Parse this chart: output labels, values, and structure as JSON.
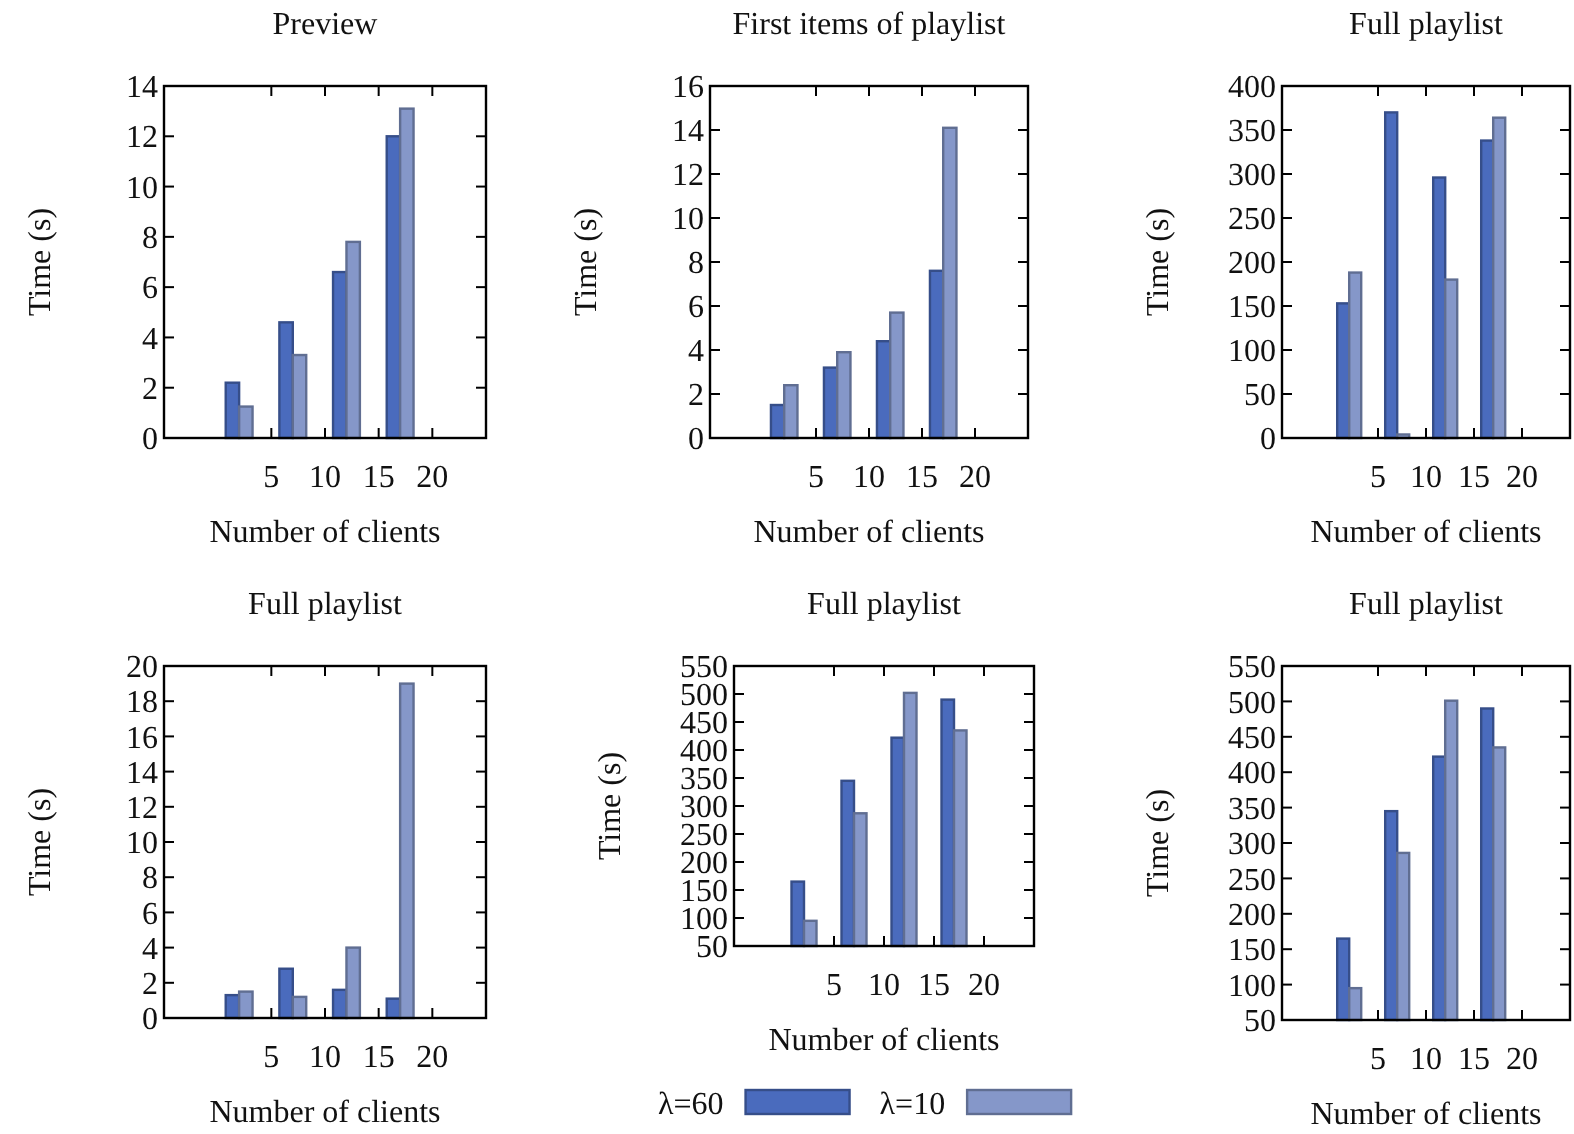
{
  "chart_data": [
    {
      "type": "bar",
      "title": "Preview",
      "xlabel": "Number of clients",
      "ylabel": "Time (s)",
      "xlim": [
        -5,
        25
      ],
      "xticks": [
        5,
        10,
        15,
        20
      ],
      "ylim": [
        0,
        14
      ],
      "yticks": [
        0,
        2,
        4,
        6,
        8,
        10,
        12,
        14
      ],
      "grid": false,
      "legend": false,
      "series": [
        {
          "color": "#4a6bbd",
          "x": [
            2,
            7,
            12,
            17
          ],
          "values": [
            2.2,
            4.6,
            6.6,
            12
          ]
        },
        {
          "color": "#8597c9",
          "x": [
            2,
            7,
            12,
            17
          ],
          "values": [
            1.25,
            3.3,
            7.8,
            13.1
          ]
        }
      ]
    },
    {
      "type": "bar",
      "title": "First items of playlist",
      "xlabel": "Number of clients",
      "ylabel": "Time (s)",
      "xlim": [
        -5,
        25
      ],
      "xticks": [
        5,
        10,
        15,
        20
      ],
      "ylim": [
        0,
        16
      ],
      "yticks": [
        0,
        2,
        4,
        6,
        8,
        10,
        12,
        14,
        16
      ],
      "grid": false,
      "legend": false,
      "series": [
        {
          "color": "#4a6bbd",
          "x": [
            2,
            7,
            12,
            17
          ],
          "values": [
            1.5,
            3.2,
            4.4,
            7.6
          ]
        },
        {
          "color": "#8597c9",
          "x": [
            2,
            7,
            12,
            17
          ],
          "values": [
            2.4,
            3.9,
            5.7,
            14.1
          ]
        }
      ]
    },
    {
      "type": "bar",
      "title": "Full playlist",
      "xlabel": "Number of clients",
      "ylabel": "Time (s)",
      "xlim": [
        -5,
        25
      ],
      "xticks": [
        5,
        10,
        15,
        20
      ],
      "ylim": [
        0,
        400
      ],
      "yticks": [
        0,
        50,
        100,
        150,
        200,
        250,
        300,
        350,
        400
      ],
      "grid": false,
      "legend": false,
      "series": [
        {
          "color": "#4a6bbd",
          "x": [
            2,
            7,
            12,
            17
          ],
          "values": [
            153,
            370,
            296,
            338
          ]
        },
        {
          "color": "#8597c9",
          "x": [
            2,
            7,
            12,
            17
          ],
          "values": [
            188,
            4,
            180,
            364
          ]
        }
      ]
    },
    {
      "type": "bar",
      "title": "Full playlist",
      "xlabel": "Number of clients",
      "ylabel": "Time (s)",
      "xlim": [
        -5,
        25
      ],
      "xticks": [
        5,
        10,
        15,
        20
      ],
      "ylim": [
        0,
        20
      ],
      "yticks": [
        0,
        2,
        4,
        6,
        8,
        10,
        12,
        14,
        16,
        18,
        20
      ],
      "grid": false,
      "legend": false,
      "series": [
        {
          "color": "#4a6bbd",
          "x": [
            2,
            7,
            12,
            17
          ],
          "values": [
            1.3,
            2.8,
            1.6,
            1.1
          ]
        },
        {
          "color": "#8597c9",
          "x": [
            2,
            7,
            12,
            17
          ],
          "values": [
            1.5,
            1.2,
            4,
            19
          ]
        }
      ]
    },
    {
      "type": "bar",
      "title": "Full playlist",
      "xlabel": "Number of clients",
      "ylabel": "Time (s)",
      "xlim": [
        -5,
        25
      ],
      "xticks": [
        5,
        10,
        15,
        20
      ],
      "ylim": [
        50,
        550
      ],
      "yticks": [
        50,
        100,
        150,
        200,
        250,
        300,
        350,
        400,
        450,
        500,
        550
      ],
      "grid": false,
      "legend": "bottom",
      "series": [
        {
          "name": "λ=60",
          "color": "#4a6bbd",
          "x": [
            2,
            7,
            12,
            17
          ],
          "values": [
            165,
            345,
            422,
            490
          ]
        },
        {
          "name": "λ=10",
          "color": "#8597c9",
          "x": [
            2,
            7,
            12,
            17
          ],
          "values": [
            95,
            287,
            502,
            435
          ]
        }
      ]
    },
    {
      "type": "bar",
      "title": "Full playlist",
      "xlabel": "Number of clients",
      "ylabel": "Time (s)",
      "xlim": [
        -5,
        25
      ],
      "xticks": [
        5,
        10,
        15,
        20
      ],
      "ylim": [
        50,
        550
      ],
      "yticks": [
        50,
        100,
        150,
        200,
        250,
        300,
        350,
        400,
        450,
        500,
        550
      ],
      "grid": false,
      "legend": false,
      "series": [
        {
          "color": "#4a6bbd",
          "x": [
            2,
            7,
            12,
            17
          ],
          "values": [
            165,
            345,
            422,
            490
          ]
        },
        {
          "color": "#8597c9",
          "x": [
            2,
            7,
            12,
            17
          ],
          "values": [
            95,
            286,
            501,
            435
          ]
        }
      ]
    }
  ]
}
